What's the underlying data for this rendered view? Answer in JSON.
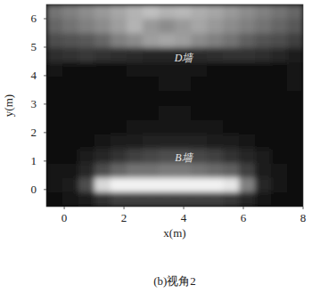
{
  "chart_data": {
    "type": "heatmap",
    "caption": "(b)视角2",
    "xlabel": "x(m)",
    "ylabel": "y(m)",
    "xlim": [
      -0.6,
      8
    ],
    "ylim": [
      -0.6,
      6.5
    ],
    "xticks": [
      0,
      2,
      4,
      6,
      8
    ],
    "yticks": [
      0,
      1,
      2,
      3,
      4,
      5,
      6
    ],
    "annotations": [
      {
        "text": "D墙",
        "x": 4,
        "y": 4.5
      },
      {
        "text": "B墙",
        "x": 4,
        "y": 1.0
      }
    ],
    "cells": [
      [
        0.45,
        0.5,
        0.55,
        0.6,
        0.65,
        0.7,
        0.75,
        0.7,
        0.72,
        0.68,
        0.65,
        0.6,
        0.55,
        0.5,
        0.45,
        0.4
      ],
      [
        0.4,
        0.45,
        0.5,
        0.55,
        0.62,
        0.7,
        0.6,
        0.55,
        0.6,
        0.65,
        0.6,
        0.55,
        0.5,
        0.45,
        0.4,
        0.35
      ],
      [
        0.3,
        0.32,
        0.35,
        0.4,
        0.5,
        0.55,
        0.62,
        0.65,
        0.62,
        0.55,
        0.5,
        0.45,
        0.38,
        0.32,
        0.3,
        0.25
      ],
      [
        0.18,
        0.2,
        0.22,
        0.2,
        0.18,
        0.16,
        0.15,
        0.15,
        0.15,
        0.16,
        0.18,
        0.2,
        0.2,
        0.18,
        0.15,
        0.12
      ],
      [
        0.08,
        0.06,
        0.05,
        0.05,
        0.06,
        0.07,
        0.08,
        0.08,
        0.08,
        0.07,
        0.06,
        0.05,
        0.05,
        0.05,
        0.06,
        0.08
      ],
      [
        0.06,
        0.05,
        0.04,
        0.04,
        0.05,
        0.06,
        0.06,
        0.07,
        0.07,
        0.06,
        0.05,
        0.04,
        0.04,
        0.04,
        0.05,
        0.07
      ],
      [
        0.05,
        0.04,
        0.04,
        0.04,
        0.05,
        0.05,
        0.06,
        0.06,
        0.06,
        0.06,
        0.05,
        0.04,
        0.04,
        0.04,
        0.05,
        0.06
      ],
      [
        0.05,
        0.04,
        0.04,
        0.05,
        0.05,
        0.06,
        0.06,
        0.07,
        0.07,
        0.06,
        0.05,
        0.05,
        0.04,
        0.04,
        0.05,
        0.06
      ],
      [
        0.05,
        0.04,
        0.05,
        0.05,
        0.06,
        0.07,
        0.08,
        0.09,
        0.09,
        0.08,
        0.07,
        0.06,
        0.05,
        0.04,
        0.05,
        0.06
      ],
      [
        0.06,
        0.05,
        0.06,
        0.08,
        0.1,
        0.12,
        0.13,
        0.14,
        0.14,
        0.13,
        0.12,
        0.1,
        0.08,
        0.06,
        0.05,
        0.06
      ],
      [
        0.06,
        0.06,
        0.1,
        0.15,
        0.2,
        0.25,
        0.28,
        0.3,
        0.3,
        0.28,
        0.25,
        0.2,
        0.15,
        0.1,
        0.06,
        0.06
      ],
      [
        0.07,
        0.08,
        0.15,
        0.3,
        0.4,
        0.45,
        0.45,
        0.48,
        0.48,
        0.45,
        0.42,
        0.38,
        0.25,
        0.12,
        0.07,
        0.06
      ],
      [
        0.08,
        0.1,
        0.3,
        0.85,
        0.95,
        0.95,
        0.95,
        0.95,
        0.95,
        0.95,
        0.95,
        0.9,
        0.5,
        0.15,
        0.08,
        0.06
      ],
      [
        0.06,
        0.07,
        0.1,
        0.2,
        0.25,
        0.25,
        0.25,
        0.25,
        0.25,
        0.25,
        0.25,
        0.22,
        0.15,
        0.08,
        0.06,
        0.05
      ]
    ]
  }
}
